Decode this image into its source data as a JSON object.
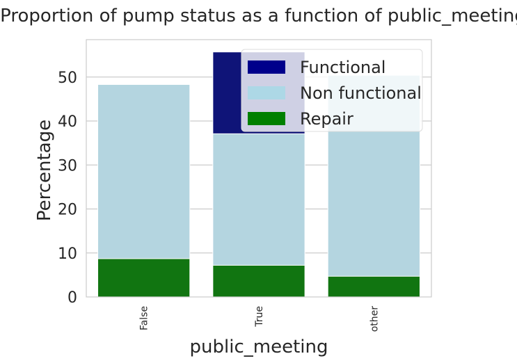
{
  "chart_data": {
    "type": "bar",
    "title": "Proportion of pump status as a function of public_meeting",
    "xlabel": "public_meeting",
    "ylabel": "Percentage",
    "categories": [
      "False",
      "True",
      "other"
    ],
    "ylim": [
      0,
      58.5
    ],
    "yticks": [
      0,
      10,
      20,
      30,
      40,
      50
    ],
    "grid": true,
    "legend_position": "upper-right",
    "series": [
      {
        "name": "Functional",
        "color": "#0f1478",
        "values": [
          0,
          55.7,
          0
        ]
      },
      {
        "name": "Non functional",
        "color": "#b4d5e0",
        "values": [
          48.3,
          37.1,
          50.4
        ]
      },
      {
        "name": "Repair",
        "color": "#117511",
        "values": [
          8.7,
          7.2,
          4.7
        ]
      }
    ],
    "legend": [
      {
        "label": "Functional",
        "color": "#00008b"
      },
      {
        "label": "Non functional",
        "color": "#add8e6"
      },
      {
        "label": "Repair",
        "color": "#008000"
      }
    ]
  }
}
